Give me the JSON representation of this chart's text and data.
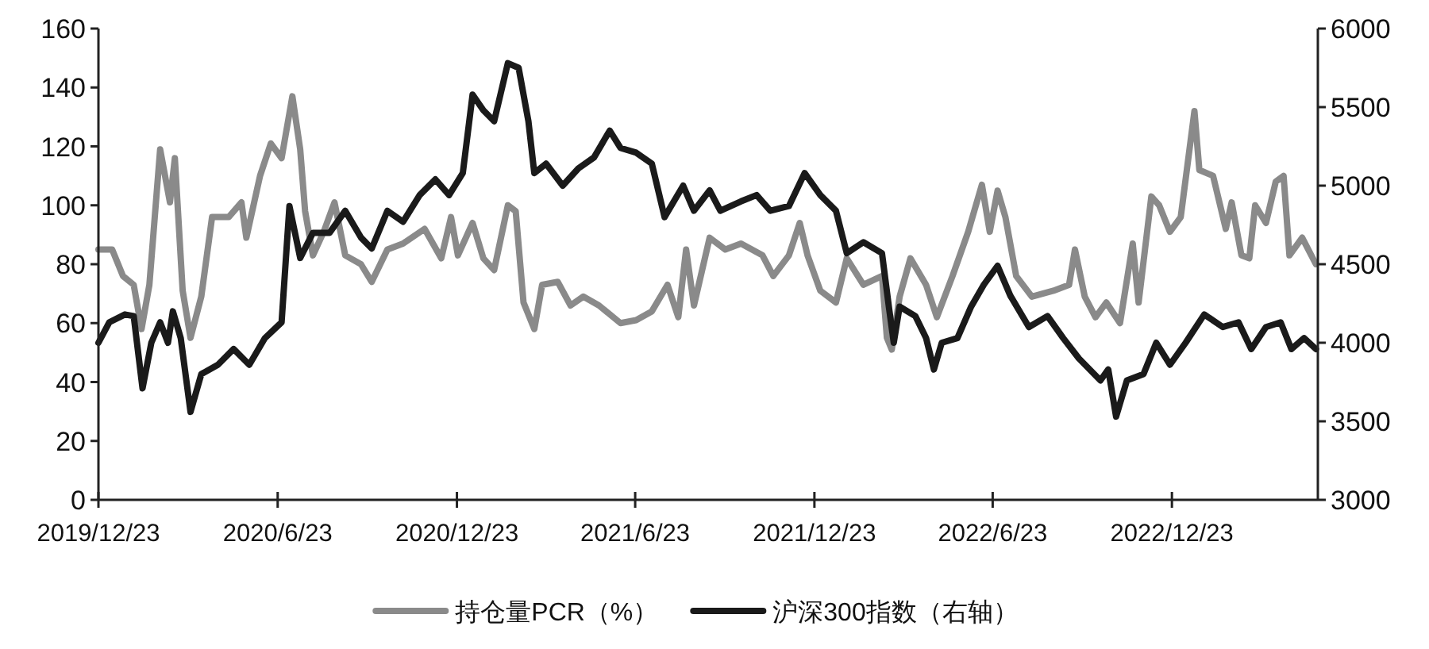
{
  "chart_data": {
    "type": "line",
    "xlim": [
      "2019-12-23",
      "2023-05-21"
    ],
    "xticks": [
      {
        "value": "2019-12-23",
        "label": "2019/12/23"
      },
      {
        "value": "2020-06-23",
        "label": "2020/6/23"
      },
      {
        "value": "2020-12-23",
        "label": "2020/12/23"
      },
      {
        "value": "2021-06-23",
        "label": "2021/6/23"
      },
      {
        "value": "2021-12-23",
        "label": "2021/12/23"
      },
      {
        "value": "2022-06-23",
        "label": "2022/6/23"
      },
      {
        "value": "2022-12-23",
        "label": "2022/12/23"
      }
    ],
    "ylim": [
      0,
      160
    ],
    "yticks": [
      0,
      20,
      40,
      60,
      80,
      100,
      120,
      140,
      160
    ],
    "y2lim": [
      3000,
      6000
    ],
    "y2ticks": [
      3000,
      3500,
      4000,
      4500,
      5000,
      5500,
      6000
    ],
    "legend": "bottom",
    "grid": false,
    "series": [
      {
        "name": "持仓量PCR（%）",
        "color": "#8a8a8a",
        "x": [
          "2019-12-23",
          "2020-01-06",
          "2020-01-17",
          "2020-01-28",
          "2020-02-05",
          "2020-02-13",
          "2020-02-24",
          "2020-03-05",
          "2020-03-10",
          "2020-03-18",
          "2020-03-26",
          "2020-04-06",
          "2020-04-17",
          "2020-05-04",
          "2020-05-17",
          "2020-05-22",
          "2020-06-05",
          "2020-06-16",
          "2020-06-27",
          "2020-07-08",
          "2020-07-16",
          "2020-07-21",
          "2020-07-29",
          "2020-08-09",
          "2020-08-20",
          "2020-08-31",
          "2020-09-16",
          "2020-09-27",
          "2020-10-13",
          "2020-10-29",
          "2020-11-20",
          "2020-12-07",
          "2020-12-17",
          "2020-12-24",
          "2021-01-08",
          "2021-01-19",
          "2021-01-30",
          "2021-02-13",
          "2021-02-21",
          "2021-03-01",
          "2021-03-12",
          "2021-03-20",
          "2021-04-05",
          "2021-04-18",
          "2021-05-01",
          "2021-05-17",
          "2021-06-08",
          "2021-06-24",
          "2021-07-10",
          "2021-07-26",
          "2021-08-06",
          "2021-08-14",
          "2021-08-22",
          "2021-09-07",
          "2021-09-23",
          "2021-10-09",
          "2021-10-31",
          "2021-11-11",
          "2021-11-27",
          "2021-12-08",
          "2021-12-16",
          "2021-12-29",
          "2022-01-14",
          "2022-01-25",
          "2022-02-11",
          "2022-03-02",
          "2022-03-07",
          "2022-03-12",
          "2022-03-20",
          "2022-03-31",
          "2022-04-16",
          "2022-04-27",
          "2022-05-13",
          "2022-05-29",
          "2022-06-12",
          "2022-06-20",
          "2022-06-28",
          "2022-07-06",
          "2022-07-17",
          "2022-08-02",
          "2022-08-24",
          "2022-09-09",
          "2022-09-15",
          "2022-09-25",
          "2022-10-06",
          "2022-10-17",
          "2022-10-31",
          "2022-11-13",
          "2022-11-19",
          "2022-12-02",
          "2022-12-10",
          "2022-12-21",
          "2023-01-01",
          "2023-01-15",
          "2023-01-20",
          "2023-02-03",
          "2023-02-16",
          "2023-02-22",
          "2023-03-04",
          "2023-03-12",
          "2023-03-18",
          "2023-03-29",
          "2023-04-08",
          "2023-04-16",
          "2023-04-22",
          "2023-05-05",
          "2023-05-19"
        ],
        "values": [
          85,
          85,
          76,
          73,
          58,
          73,
          119,
          101,
          116,
          71,
          55,
          69,
          96,
          96,
          101,
          89,
          110,
          121,
          116,
          137,
          119,
          98,
          83,
          91,
          101,
          83,
          80,
          74,
          85,
          87,
          92,
          82,
          96,
          83,
          94,
          82,
          78,
          100,
          98,
          67,
          58,
          73,
          74,
          66,
          69,
          66,
          60,
          61,
          64,
          73,
          62,
          85,
          66,
          89,
          85,
          87,
          83,
          76,
          83,
          94,
          83,
          71,
          67,
          82,
          73,
          76,
          55,
          51,
          69,
          82,
          73,
          62,
          76,
          91,
          107,
          91,
          105,
          96,
          76,
          69,
          71,
          73,
          85,
          69,
          62,
          67,
          60,
          87,
          67,
          103,
          100,
          91,
          96,
          132,
          112,
          110,
          92,
          101,
          83,
          82,
          100,
          94,
          108,
          110,
          83,
          89,
          80
        ]
      },
      {
        "name": "沪深300指数（右轴）",
        "color": "#1a1a1a",
        "axis": "y2",
        "x": [
          "2019-12-23",
          "2020-01-03",
          "2020-01-19",
          "2020-01-28",
          "2020-02-06",
          "2020-02-15",
          "2020-02-24",
          "2020-03-03",
          "2020-03-08",
          "2020-03-16",
          "2020-03-26",
          "2020-04-06",
          "2020-04-23",
          "2020-05-09",
          "2020-05-25",
          "2020-06-10",
          "2020-06-27",
          "2020-07-05",
          "2020-07-16",
          "2020-07-29",
          "2020-08-15",
          "2020-08-31",
          "2020-09-16",
          "2020-09-27",
          "2020-10-13",
          "2020-10-29",
          "2020-11-15",
          "2020-12-01",
          "2020-12-15",
          "2020-12-29",
          "2021-01-08",
          "2021-01-19",
          "2021-01-30",
          "2021-02-13",
          "2021-02-24",
          "2021-03-06",
          "2021-03-12",
          "2021-03-24",
          "2021-04-10",
          "2021-04-26",
          "2021-05-12",
          "2021-05-28",
          "2021-06-08",
          "2021-06-24",
          "2021-07-10",
          "2021-07-23",
          "2021-08-11",
          "2021-08-22",
          "2021-09-07",
          "2021-09-18",
          "2021-10-09",
          "2021-10-25",
          "2021-11-08",
          "2021-11-27",
          "2021-12-13",
          "2021-12-29",
          "2022-01-14",
          "2022-01-25",
          "2022-02-11",
          "2022-03-02",
          "2022-03-09",
          "2022-03-14",
          "2022-03-20",
          "2022-04-05",
          "2022-04-16",
          "2022-04-24",
          "2022-05-02",
          "2022-05-18",
          "2022-06-01",
          "2022-06-14",
          "2022-06-28",
          "2022-07-11",
          "2022-07-30",
          "2022-08-18",
          "2022-09-03",
          "2022-09-19",
          "2022-10-11",
          "2022-10-19",
          "2022-10-27",
          "2022-11-07",
          "2022-11-24",
          "2022-12-07",
          "2022-12-21",
          "2023-01-06",
          "2023-01-25",
          "2023-02-13",
          "2023-03-01",
          "2023-03-14",
          "2023-03-29",
          "2023-04-13",
          "2023-04-24",
          "2023-05-07",
          "2023-05-19"
        ],
        "values": [
          4000,
          4130,
          4180,
          4170,
          3710,
          4000,
          4130,
          4000,
          4200,
          4030,
          3560,
          3800,
          3860,
          3960,
          3860,
          4030,
          4130,
          4870,
          4540,
          4700,
          4700,
          4840,
          4670,
          4600,
          4840,
          4770,
          4940,
          5040,
          4940,
          5080,
          5580,
          5480,
          5410,
          5780,
          5750,
          5410,
          5080,
          5140,
          5000,
          5110,
          5180,
          5350,
          5240,
          5210,
          5140,
          4800,
          5000,
          4840,
          4970,
          4840,
          4900,
          4940,
          4840,
          4870,
          5080,
          4940,
          4840,
          4570,
          4640,
          4570,
          4230,
          4000,
          4230,
          4170,
          4030,
          3830,
          4000,
          4030,
          4230,
          4370,
          4490,
          4300,
          4100,
          4170,
          4030,
          3900,
          3760,
          3830,
          3530,
          3760,
          3800,
          4000,
          3860,
          4000,
          4180,
          4100,
          4130,
          3960,
          4100,
          4130,
          3960,
          4030,
          3960
        ]
      }
    ]
  }
}
